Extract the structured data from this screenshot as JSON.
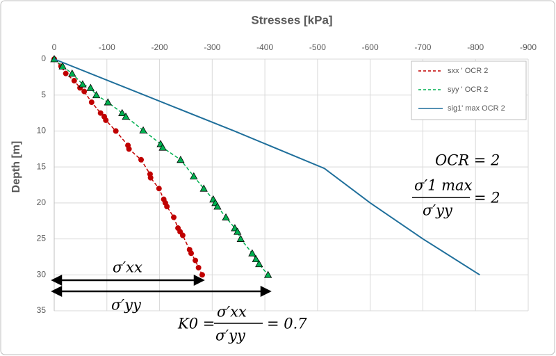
{
  "chart_data": {
    "type": "scatter",
    "title": "Stresses [kPa]",
    "y_label": "Depth [m]",
    "xlim": [
      0,
      -900
    ],
    "xticks": [
      0,
      -100,
      -200,
      -300,
      -400,
      -500,
      -600,
      -700,
      -800,
      -900
    ],
    "ylim": [
      0,
      35
    ],
    "yticks": [
      0,
      5,
      10,
      15,
      20,
      25,
      30,
      35
    ],
    "y_reversed": true,
    "x_axis_position": "top",
    "grid": true,
    "legend": "top-right",
    "series": [
      {
        "name": "sxx ' OCR 2",
        "color": "#c00000",
        "marker": "circle",
        "line_style": "dashed",
        "x": [
          0,
          -13,
          -22,
          -38,
          -49,
          -57,
          -71,
          -88,
          -95,
          -98,
          -117,
          -140,
          -142,
          -165,
          -182,
          -183,
          -199,
          -208,
          -211,
          -214,
          -227,
          -235,
          -239,
          -244,
          -257,
          -260,
          -268,
          -274,
          -281
        ],
        "y": [
          0,
          1,
          2,
          3,
          4,
          4.5,
          6,
          7.5,
          8,
          8.5,
          10,
          12,
          12.5,
          14,
          16,
          16.5,
          18,
          19.5,
          20,
          20.5,
          22,
          23.5,
          24,
          24.5,
          26.5,
          27,
          28,
          29,
          30
        ]
      },
      {
        "name": "syy ' OCR 2",
        "color": "#00b050",
        "marker": "triangle",
        "line_style": "dashed",
        "x": [
          0,
          -16,
          -34,
          -54,
          -69,
          -80,
          -102,
          -129,
          -136,
          -169,
          -202,
          -206,
          -240,
          -265,
          -284,
          -302,
          -306,
          -310,
          -326,
          -343,
          -348,
          -354,
          -376,
          -383,
          -389,
          -406
        ],
        "y": [
          0,
          1,
          2,
          3.5,
          4,
          5,
          6,
          7.5,
          8,
          9.9,
          11.8,
          12.3,
          14,
          16.3,
          18,
          19.5,
          20,
          20.5,
          22,
          23.5,
          24,
          25,
          27,
          27.8,
          28.5,
          30
        ]
      },
      {
        "name": "sig1' max OCR 2",
        "color": "#1f6f9b",
        "marker": null,
        "line_style": "solid",
        "x": [
          0,
          -171,
          -342,
          -513,
          -600,
          -700,
          -808
        ],
        "y": [
          0,
          5,
          10,
          15.2,
          20,
          25,
          30
        ]
      }
    ],
    "annotations": [
      "OCR = 2",
      "σ′1 max",
      "σ′yy",
      "= 2",
      "σ′xx",
      "σ′yy",
      "K0 =",
      "σ′xx",
      "σ′yy",
      "= 0.7"
    ]
  }
}
